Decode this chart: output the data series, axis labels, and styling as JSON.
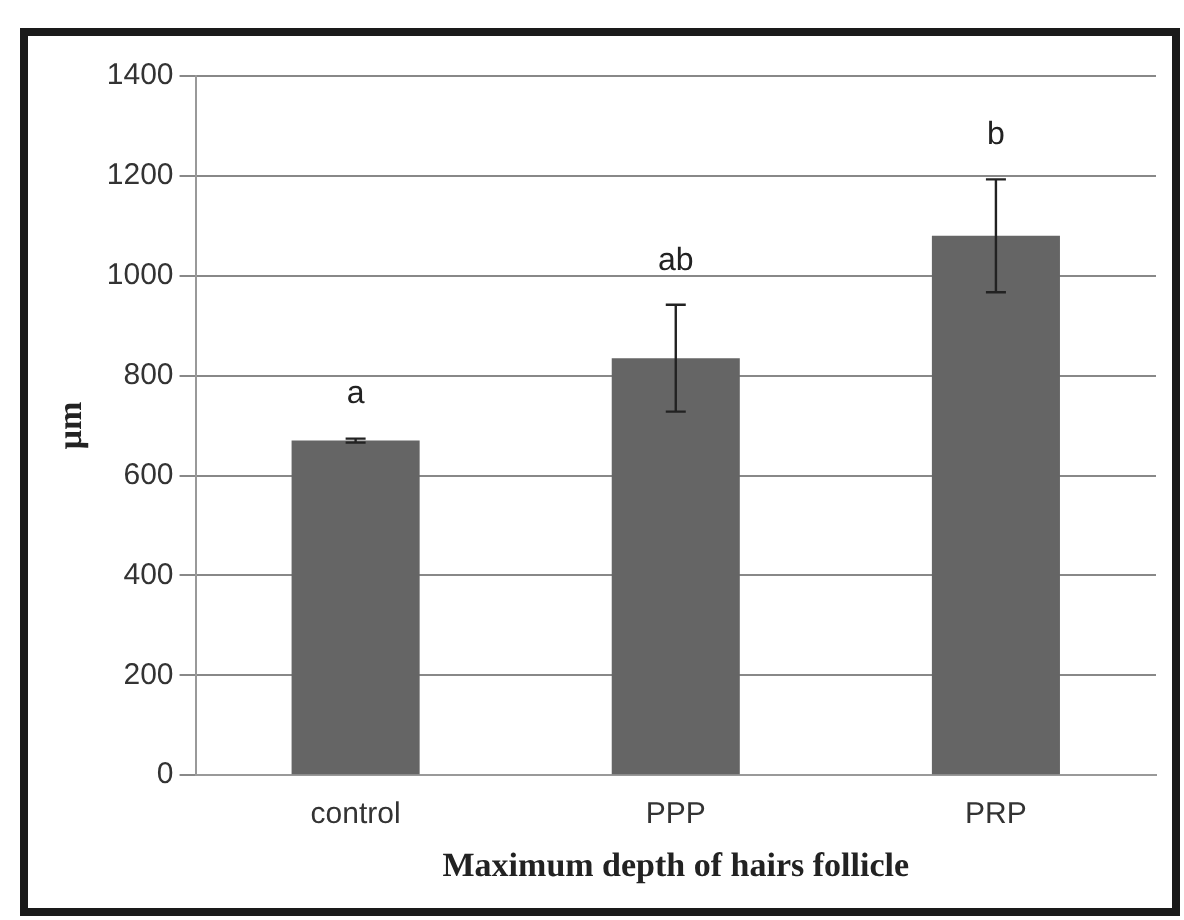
{
  "chart_data": {
    "type": "bar",
    "xlabel": "Maximum depth of hairs follicle",
    "ylabel": "µm",
    "categories": [
      "control",
      "PPP",
      "PRP"
    ],
    "values": [
      670,
      835,
      1080
    ],
    "errors": [
      4,
      107,
      113
    ],
    "color": "#656565",
    "ylim": [
      0,
      1400
    ],
    "yticks": [
      0,
      200,
      400,
      600,
      800,
      1000,
      1200,
      1400
    ],
    "grid": "y",
    "legend": false,
    "annotations": [
      "a",
      "ab",
      "b"
    ]
  }
}
